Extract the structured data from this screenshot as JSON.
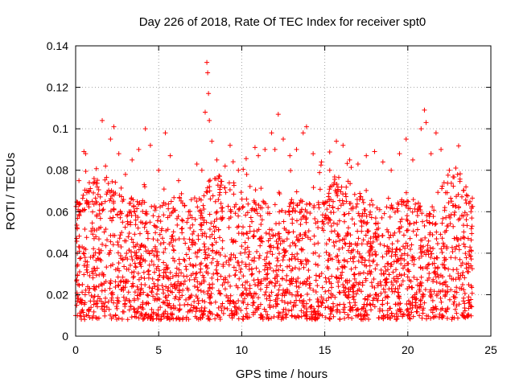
{
  "chart_data": {
    "type": "scatter",
    "title": "Day 226 of 2018, Rate Of TEC Index for receiver spt0",
    "xlabel": "GPS time / hours",
    "ylabel": "ROTI / TECUs",
    "xlim": [
      0,
      25
    ],
    "ylim": [
      0,
      0.14
    ],
    "x_ticks": [
      0,
      5,
      10,
      15,
      20,
      25
    ],
    "y_ticks": [
      0,
      0.02,
      0.04,
      0.06,
      0.08,
      0.1,
      0.12,
      0.14
    ],
    "x_tick_labels": [
      "0",
      "5",
      "10",
      "15",
      "20",
      "25"
    ],
    "y_tick_labels": [
      "0",
      "0.02",
      "0.04",
      "0.06",
      "0.08",
      "0.1",
      "0.12",
      "0.14"
    ],
    "grid": true,
    "marker": "+",
    "color": "#ff0000",
    "series": [
      {
        "name": "ROTI",
        "note": "dense cloud of ~several thousand points, baseline 0.005-0.065 TECU across 0-24 h; representative extremes listed",
        "points": [
          [
            0.1,
            0.04
          ],
          [
            0.2,
            0.075
          ],
          [
            0.3,
            0.06
          ],
          [
            0.5,
            0.089
          ],
          [
            0.6,
            0.088
          ],
          [
            0.8,
            0.07
          ],
          [
            1.0,
            0.065
          ],
          [
            1.3,
            0.072
          ],
          [
            1.6,
            0.104
          ],
          [
            1.8,
            0.082
          ],
          [
            2.1,
            0.095
          ],
          [
            2.3,
            0.101
          ],
          [
            2.6,
            0.088
          ],
          [
            3.0,
            0.078
          ],
          [
            3.4,
            0.085
          ],
          [
            3.8,
            0.09
          ],
          [
            4.2,
            0.1
          ],
          [
            4.5,
            0.092
          ],
          [
            5.0,
            0.08
          ],
          [
            5.4,
            0.098
          ],
          [
            5.7,
            0.087
          ],
          [
            6.2,
            0.075
          ],
          [
            6.8,
            0.06
          ],
          [
            7.3,
            0.083
          ],
          [
            7.6,
            0.08
          ],
          [
            7.8,
            0.108
          ],
          [
            7.9,
            0.132
          ],
          [
            7.95,
            0.127
          ],
          [
            8.0,
            0.117
          ],
          [
            8.05,
            0.104
          ],
          [
            8.2,
            0.094
          ],
          [
            8.5,
            0.085
          ],
          [
            9.0,
            0.082
          ],
          [
            9.3,
            0.092
          ],
          [
            9.8,
            0.08
          ],
          [
            10.3,
            0.078
          ],
          [
            10.8,
            0.091
          ],
          [
            11.0,
            0.087
          ],
          [
            11.4,
            0.09
          ],
          [
            11.8,
            0.098
          ],
          [
            12.0,
            0.09
          ],
          [
            12.2,
            0.107
          ],
          [
            12.5,
            0.095
          ],
          [
            12.9,
            0.087
          ],
          [
            13.3,
            0.09
          ],
          [
            13.7,
            0.098
          ],
          [
            13.9,
            0.101
          ],
          [
            14.3,
            0.088
          ],
          [
            14.8,
            0.084
          ],
          [
            15.3,
            0.08
          ],
          [
            15.7,
            0.094
          ],
          [
            16.1,
            0.092
          ],
          [
            16.5,
            0.085
          ],
          [
            17.0,
            0.083
          ],
          [
            17.5,
            0.087
          ],
          [
            18.0,
            0.089
          ],
          [
            18.5,
            0.084
          ],
          [
            19.0,
            0.08
          ],
          [
            19.5,
            0.088
          ],
          [
            19.9,
            0.095
          ],
          [
            20.3,
            0.085
          ],
          [
            20.8,
            0.1
          ],
          [
            21.0,
            0.109
          ],
          [
            21.1,
            0.103
          ],
          [
            21.4,
            0.088
          ],
          [
            21.7,
            0.098
          ],
          [
            22.0,
            0.09
          ],
          [
            22.5,
            0.08
          ],
          [
            23.0,
            0.078
          ],
          [
            23.5,
            0.072
          ],
          [
            23.8,
            0.06
          ]
        ]
      }
    ]
  }
}
